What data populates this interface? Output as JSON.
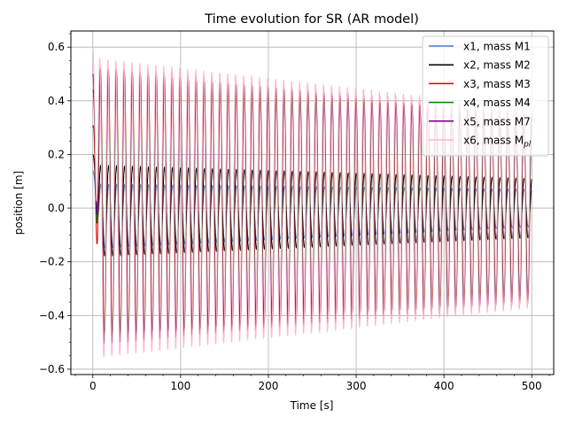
{
  "chart_data": {
    "type": "line",
    "title": "Time evolution for SR (AR model)",
    "xlabel": "Time [s]",
    "ylabel": "position [m]",
    "xlim": [
      -25,
      525
    ],
    "ylim": [
      -0.62,
      0.66
    ],
    "grid": true,
    "legend_position": "top-right",
    "x_ticks": [
      0,
      100,
      200,
      300,
      400,
      500
    ],
    "x_tick_labels": [
      "0",
      "100",
      "200",
      "300",
      "400",
      "500"
    ],
    "y_ticks": [
      -0.6,
      -0.4,
      -0.2,
      0.0,
      0.2,
      0.4,
      0.6
    ],
    "y_tick_labels": [
      "−0.6",
      "−0.4",
      "−0.2",
      "0.0",
      "0.2",
      "0.4",
      "0.6"
    ],
    "x_range": [
      0,
      500
    ],
    "series": [
      {
        "name": "x1, mass M1",
        "name_sub": "",
        "color": "#4a7fc1",
        "oscillation": {
          "initial": 0.14,
          "amplitude": [
            0.12,
            0.07
          ],
          "period_s": 9.1,
          "offset": [
            -0.03,
            0.0
          ]
        }
      },
      {
        "name": "x2, mass M2",
        "name_sub": "",
        "color": "#000000",
        "oscillation": {
          "initial": 0.2,
          "amplitude": [
            0.17,
            0.11
          ],
          "period_s": 9.1,
          "offset": [
            -0.01,
            0.0
          ]
        }
      },
      {
        "name": "x3, mass M3",
        "name_sub": "",
        "color": "#e00000",
        "oscillation": {
          "initial": 0.3,
          "amplitude": [
            0.5,
            0.34
          ],
          "period_s": 9.1,
          "offset": [
            0.02,
            0.0
          ]
        }
      },
      {
        "name": "x4, mass M4",
        "name_sub": "",
        "color": "#008000",
        "oscillation": {
          "initial": 0.44,
          "amplitude": [
            0.5,
            0.34
          ],
          "period_s": 9.1,
          "offset": [
            0.02,
            0.0
          ]
        }
      },
      {
        "name": "x5, mass M7",
        "name_sub": "",
        "color": "#6a0080",
        "oscillation": {
          "initial": 0.5,
          "amplitude": [
            0.52,
            0.36
          ],
          "period_s": 9.1,
          "offset": [
            0.01,
            0.0
          ]
        }
      },
      {
        "name": "x6, mass M",
        "name_sub": "pl",
        "color": "#ffb6c8",
        "oscillation": {
          "initial": 0.6,
          "amplitude": [
            0.56,
            0.37
          ],
          "period_s": 9.1,
          "offset": [
            0.0,
            0.0
          ]
        }
      }
    ]
  }
}
